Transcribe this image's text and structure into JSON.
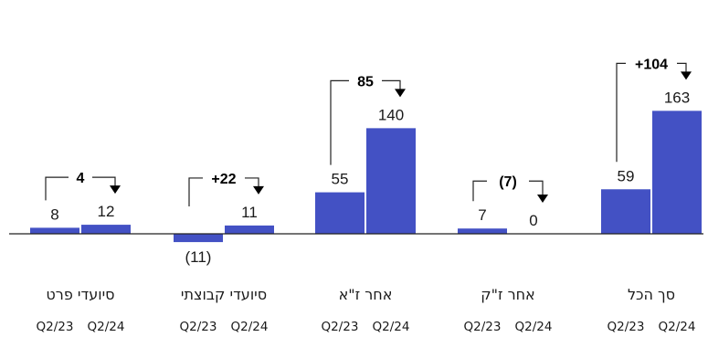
{
  "chart_data": {
    "type": "bar",
    "bar_color": "#4351c4",
    "period_labels": [
      "Q2/23",
      "Q2/24"
    ],
    "groups": [
      {
        "category": "סיועדי פרט",
        "values": [
          8,
          12
        ],
        "value_labels": [
          "8",
          "12"
        ],
        "change_label": "4"
      },
      {
        "category": "סיועדי קבוצתי",
        "values": [
          -11,
          11
        ],
        "value_labels": [
          "(11)",
          "11"
        ],
        "change_label": "+22"
      },
      {
        "category": "אחר ז\"א",
        "values": [
          55,
          140
        ],
        "value_labels": [
          "55",
          "140"
        ],
        "change_label": "85"
      },
      {
        "category": "אחר ז\"ק",
        "values": [
          7,
          0
        ],
        "value_labels": [
          "7",
          "0"
        ],
        "change_label": "(7)"
      },
      {
        "category": "סך הכל",
        "values": [
          59,
          163
        ],
        "value_labels": [
          "59",
          "163"
        ],
        "change_label": "+104"
      }
    ]
  }
}
